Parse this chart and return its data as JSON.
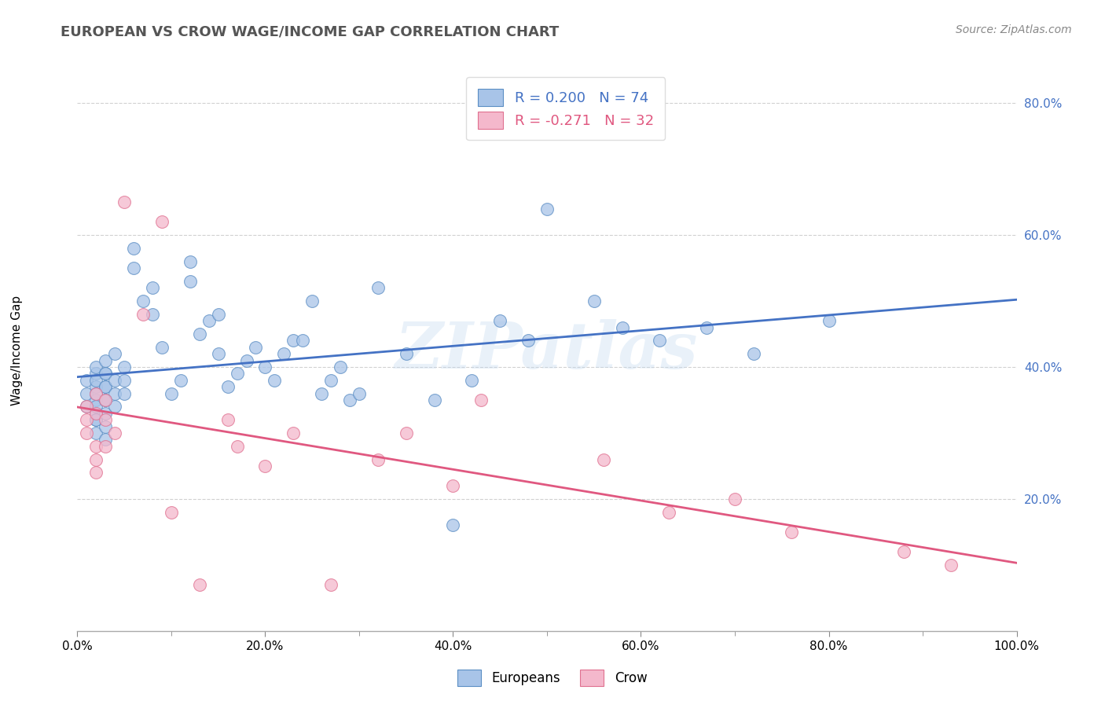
{
  "title": "EUROPEAN VS CROW WAGE/INCOME GAP CORRELATION CHART",
  "source": "Source: ZipAtlas.com",
  "ylabel": "Wage/Income Gap",
  "xlim": [
    0.0,
    1.0
  ],
  "ylim": [
    0.0,
    0.85
  ],
  "x_ticks": [
    0.0,
    0.2,
    0.4,
    0.6,
    0.8,
    1.0
  ],
  "x_tick_labels": [
    "0.0%",
    "20.0%",
    "40.0%",
    "60.0%",
    "80.0%",
    "100.0%"
  ],
  "y_ticks": [
    0.2,
    0.4,
    0.6,
    0.8
  ],
  "y_tick_labels": [
    "20.0%",
    "40.0%",
    "60.0%",
    "80.0%"
  ],
  "R_european": 0.2,
  "N_european": 74,
  "R_crow": -0.271,
  "N_crow": 32,
  "blue_fill": "#a8c4e8",
  "pink_fill": "#f4b8cc",
  "blue_edge": "#5b8ec4",
  "pink_edge": "#e07090",
  "blue_line": "#4472c4",
  "pink_line": "#e05880",
  "legend_blue": "Europeans",
  "legend_pink": "Crow",
  "watermark": "ZIPatlas",
  "eu_x": [
    0.01,
    0.01,
    0.01,
    0.02,
    0.02,
    0.02,
    0.02,
    0.02,
    0.02,
    0.02,
    0.02,
    0.02,
    0.02,
    0.02,
    0.03,
    0.03,
    0.03,
    0.03,
    0.03,
    0.03,
    0.03,
    0.03,
    0.03,
    0.03,
    0.04,
    0.04,
    0.04,
    0.04,
    0.05,
    0.05,
    0.05,
    0.06,
    0.06,
    0.07,
    0.08,
    0.08,
    0.09,
    0.1,
    0.11,
    0.12,
    0.12,
    0.13,
    0.14,
    0.15,
    0.15,
    0.16,
    0.17,
    0.18,
    0.19,
    0.2,
    0.21,
    0.22,
    0.23,
    0.24,
    0.25,
    0.26,
    0.27,
    0.28,
    0.29,
    0.3,
    0.32,
    0.35,
    0.38,
    0.4,
    0.42,
    0.45,
    0.48,
    0.5,
    0.55,
    0.58,
    0.62,
    0.67,
    0.72,
    0.8
  ],
  "eu_y": [
    0.34,
    0.36,
    0.38,
    0.33,
    0.35,
    0.37,
    0.39,
    0.4,
    0.32,
    0.34,
    0.36,
    0.38,
    0.3,
    0.32,
    0.35,
    0.37,
    0.39,
    0.41,
    0.33,
    0.35,
    0.37,
    0.39,
    0.31,
    0.29,
    0.36,
    0.38,
    0.42,
    0.34,
    0.36,
    0.4,
    0.38,
    0.55,
    0.58,
    0.5,
    0.52,
    0.48,
    0.43,
    0.36,
    0.38,
    0.53,
    0.56,
    0.45,
    0.47,
    0.48,
    0.42,
    0.37,
    0.39,
    0.41,
    0.43,
    0.4,
    0.38,
    0.42,
    0.44,
    0.44,
    0.5,
    0.36,
    0.38,
    0.4,
    0.35,
    0.36,
    0.52,
    0.42,
    0.35,
    0.16,
    0.38,
    0.47,
    0.44,
    0.64,
    0.5,
    0.46,
    0.44,
    0.46,
    0.42,
    0.47
  ],
  "crow_x": [
    0.01,
    0.01,
    0.01,
    0.02,
    0.02,
    0.02,
    0.02,
    0.02,
    0.03,
    0.03,
    0.03,
    0.04,
    0.05,
    0.07,
    0.09,
    0.1,
    0.13,
    0.16,
    0.17,
    0.2,
    0.23,
    0.27,
    0.32,
    0.35,
    0.4,
    0.43,
    0.56,
    0.63,
    0.7,
    0.76,
    0.88,
    0.93
  ],
  "crow_y": [
    0.32,
    0.34,
    0.3,
    0.36,
    0.28,
    0.26,
    0.24,
    0.33,
    0.35,
    0.32,
    0.28,
    0.3,
    0.65,
    0.48,
    0.62,
    0.18,
    0.07,
    0.32,
    0.28,
    0.25,
    0.3,
    0.07,
    0.26,
    0.3,
    0.22,
    0.35,
    0.26,
    0.18,
    0.2,
    0.15,
    0.12,
    0.1
  ]
}
